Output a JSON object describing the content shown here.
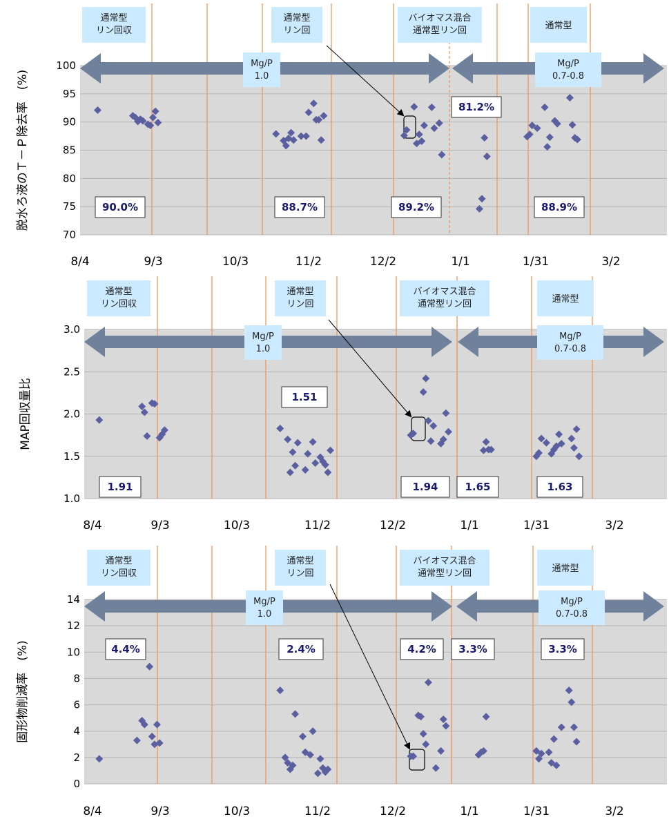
{
  "chart_data": [
    {
      "type": "scatter",
      "ylabel": "脱水ろ液のＴ－Ｐ除去率　(%)",
      "ylim": [
        70,
        100
      ],
      "yticks": [
        "70",
        "75",
        "80",
        "85",
        "90",
        "95",
        "100"
      ],
      "x_date_ticks": [
        "8/4",
        "9/3",
        "10/3",
        "11/2",
        "12/2",
        "1/1",
        "1/31",
        "3/2"
      ],
      "phases": [
        "通常型\nリン回収",
        "通常型\nリン回",
        "バイオマス混合\n通常型リン回",
        "通常型"
      ],
      "mgp": [
        "Mg/P\n1.0",
        "Mg/P\n0.7-0.8"
      ],
      "annotations": [
        "90.0%",
        "88.7%",
        "89.2%",
        "81.2%",
        "88.9%"
      ],
      "points": [
        {
          "x": "8/11",
          "y": 92.1
        },
        {
          "x": "8/25",
          "y": 91.1
        },
        {
          "x": "8/26",
          "y": 90.8
        },
        {
          "x": "8/27",
          "y": 90.1
        },
        {
          "x": "8/28",
          "y": 90.5
        },
        {
          "x": "8/29",
          "y": 90.2
        },
        {
          "x": "8/31",
          "y": 89.6
        },
        {
          "x": "9/1",
          "y": 89.4
        },
        {
          "x": "9/2",
          "y": 90.8
        },
        {
          "x": "9/3",
          "y": 91.9
        },
        {
          "x": "9/4",
          "y": 89.9
        },
        {
          "x": "10/21",
          "y": 87.9
        },
        {
          "x": "10/24",
          "y": 86.7
        },
        {
          "x": "10/25",
          "y": 85.8
        },
        {
          "x": "10/26",
          "y": 87.1
        },
        {
          "x": "10/27",
          "y": 88.1
        },
        {
          "x": "10/28",
          "y": 86.8
        },
        {
          "x": "10/31",
          "y": 87.5
        },
        {
          "x": "11/2",
          "y": 87.5
        },
        {
          "x": "11/3",
          "y": 91.7
        },
        {
          "x": "11/5",
          "y": 93.3
        },
        {
          "x": "11/6",
          "y": 90.4
        },
        {
          "x": "11/7",
          "y": 90.4
        },
        {
          "x": "11/8",
          "y": 86.8
        },
        {
          "x": "11/9",
          "y": 91.1
        },
        {
          "x": "12/11",
          "y": 87.6
        },
        {
          "x": "12/12",
          "y": 88.6
        },
        {
          "x": "12/15",
          "y": 92.7
        },
        {
          "x": "12/16",
          "y": 86.2
        },
        {
          "x": "12/17",
          "y": 87.8
        },
        {
          "x": "12/18",
          "y": 86.6
        },
        {
          "x": "12/19",
          "y": 89.4
        },
        {
          "x": "12/22",
          "y": 92.6
        },
        {
          "x": "12/23",
          "y": 88.9
        },
        {
          "x": "12/25",
          "y": 89.8
        },
        {
          "x": "12/26",
          "y": 84.2
        },
        {
          "x": "1/10",
          "y": 74.6
        },
        {
          "x": "1/11",
          "y": 76.4
        },
        {
          "x": "1/12",
          "y": 87.2
        },
        {
          "x": "1/13",
          "y": 83.9
        },
        {
          "x": "1/29",
          "y": 87.4
        },
        {
          "x": "1/30",
          "y": 87.8
        },
        {
          "x": "1/31",
          "y": 89.4
        },
        {
          "x": "2/2",
          "y": 88.9
        },
        {
          "x": "2/5",
          "y": 92.6
        },
        {
          "x": "2/6",
          "y": 85.6
        },
        {
          "x": "2/7",
          "y": 87.3
        },
        {
          "x": "2/9",
          "y": 90.2
        },
        {
          "x": "2/10",
          "y": 89.7
        },
        {
          "x": "2/15",
          "y": 94.3
        },
        {
          "x": "2/16",
          "y": 89.5
        },
        {
          "x": "2/17",
          "y": 87.2
        },
        {
          "x": "2/18",
          "y": 86.9
        }
      ]
    },
    {
      "type": "scatter",
      "ylabel": "MAP回収量比",
      "ylim": [
        1.0,
        3.0
      ],
      "yticks": [
        "1.0",
        "1.5",
        "2.0",
        "2.5",
        "3.0"
      ],
      "x_date_ticks": [
        "8/4",
        "9/3",
        "10/3",
        "11/2",
        "12/2",
        "1/1",
        "1/31",
        "3/2"
      ],
      "phases": [
        "通常型\nリン回収",
        "通常型\nリン回",
        "バイオマス混合\n通常型リン回",
        "通常型"
      ],
      "mgp": [
        "Mg/P\n1.0",
        "Mg/P\n0.7-0.8"
      ],
      "annotations": [
        "1.91",
        "1.51",
        "1.94",
        "1.65",
        "1.63"
      ],
      "points": [
        {
          "x": "8/10",
          "y": 1.93
        },
        {
          "x": "8/27",
          "y": 2.09
        },
        {
          "x": "8/28",
          "y": 2.02
        },
        {
          "x": "8/29",
          "y": 1.74
        },
        {
          "x": "8/31",
          "y": 2.13
        },
        {
          "x": "9/1",
          "y": 2.12
        },
        {
          "x": "9/3",
          "y": 1.72
        },
        {
          "x": "9/4",
          "y": 1.76
        },
        {
          "x": "9/5",
          "y": 1.81
        },
        {
          "x": "10/21",
          "y": 1.83
        },
        {
          "x": "10/24",
          "y": 1.7
        },
        {
          "x": "10/25",
          "y": 1.31
        },
        {
          "x": "10/26",
          "y": 1.55
        },
        {
          "x": "10/27",
          "y": 1.39
        },
        {
          "x": "10/28",
          "y": 1.66
        },
        {
          "x": "10/31",
          "y": 1.34
        },
        {
          "x": "11/1",
          "y": 1.53
        },
        {
          "x": "11/3",
          "y": 1.67
        },
        {
          "x": "11/4",
          "y": 1.42
        },
        {
          "x": "11/6",
          "y": 1.49
        },
        {
          "x": "11/7",
          "y": 1.44
        },
        {
          "x": "11/8",
          "y": 1.4
        },
        {
          "x": "11/9",
          "y": 1.31
        },
        {
          "x": "11/10",
          "y": 1.57
        },
        {
          "x": "12/12",
          "y": 1.75
        },
        {
          "x": "12/13",
          "y": 1.77
        },
        {
          "x": "12/17",
          "y": 2.26
        },
        {
          "x": "12/18",
          "y": 2.42
        },
        {
          "x": "12/19",
          "y": 1.92
        },
        {
          "x": "12/20",
          "y": 1.68
        },
        {
          "x": "12/21",
          "y": 1.86
        },
        {
          "x": "12/24",
          "y": 1.65
        },
        {
          "x": "12/25",
          "y": 1.7
        },
        {
          "x": "12/26",
          "y": 2.01
        },
        {
          "x": "12/27",
          "y": 1.79
        },
        {
          "x": "1/10",
          "y": 1.57
        },
        {
          "x": "1/11",
          "y": 1.67
        },
        {
          "x": "1/12",
          "y": 1.58
        },
        {
          "x": "1/13",
          "y": 1.58
        },
        {
          "x": "1/31",
          "y": 1.5
        },
        {
          "x": "2/1",
          "y": 1.54
        },
        {
          "x": "2/2",
          "y": 1.71
        },
        {
          "x": "2/4",
          "y": 1.66
        },
        {
          "x": "2/6",
          "y": 1.53
        },
        {
          "x": "2/7",
          "y": 1.58
        },
        {
          "x": "2/8",
          "y": 1.62
        },
        {
          "x": "2/9",
          "y": 1.76
        },
        {
          "x": "2/10",
          "y": 1.65
        },
        {
          "x": "2/14",
          "y": 1.71
        },
        {
          "x": "2/15",
          "y": 1.6
        },
        {
          "x": "2/16",
          "y": 1.82
        },
        {
          "x": "2/17",
          "y": 1.5
        }
      ]
    },
    {
      "type": "scatter",
      "ylabel": "固形物削減率　(%)",
      "ylim": [
        0,
        14
      ],
      "yticks": [
        "0",
        "2",
        "4",
        "6",
        "8",
        "10",
        "12",
        "14"
      ],
      "x_date_ticks": [
        "8/4",
        "9/3",
        "10/3",
        "11/2",
        "12/2",
        "1/1",
        "1/31",
        "3/2"
      ],
      "phases": [
        "通常型\nリン回収",
        "通常型\nリン回",
        "バイオマス混合\n通常型リン回",
        "通常型"
      ],
      "mgp": [
        "Mg/P\n1.0",
        "Mg/P\n0.7-0.8"
      ],
      "annotations": [
        "4.4%",
        "2.4%",
        "4.2%",
        "3.3%",
        "3.3%"
      ],
      "points": [
        {
          "x": "8/10",
          "y": 1.9
        },
        {
          "x": "8/25",
          "y": 3.3
        },
        {
          "x": "8/27",
          "y": 4.8
        },
        {
          "x": "8/28",
          "y": 4.5
        },
        {
          "x": "8/30",
          "y": 8.9
        },
        {
          "x": "8/31",
          "y": 3.6
        },
        {
          "x": "9/1",
          "y": 3.0
        },
        {
          "x": "9/2",
          "y": 4.5
        },
        {
          "x": "9/3",
          "y": 3.1
        },
        {
          "x": "10/21",
          "y": 7.1
        },
        {
          "x": "10/23",
          "y": 2.0
        },
        {
          "x": "10/24",
          "y": 1.6
        },
        {
          "x": "10/25",
          "y": 1.1
        },
        {
          "x": "10/26",
          "y": 1.4
        },
        {
          "x": "10/27",
          "y": 5.3
        },
        {
          "x": "10/30",
          "y": 3.6
        },
        {
          "x": "10/31",
          "y": 2.4
        },
        {
          "x": "11/2",
          "y": 2.2
        },
        {
          "x": "11/3",
          "y": 4.0
        },
        {
          "x": "11/5",
          "y": 0.8
        },
        {
          "x": "11/6",
          "y": 1.9
        },
        {
          "x": "11/7",
          "y": 1.2
        },
        {
          "x": "11/8",
          "y": 0.9
        },
        {
          "x": "11/9",
          "y": 1.1
        },
        {
          "x": "12/12",
          "y": 2.1
        },
        {
          "x": "12/13",
          "y": 2.1
        },
        {
          "x": "12/15",
          "y": 5.2
        },
        {
          "x": "12/16",
          "y": 5.1
        },
        {
          "x": "12/17",
          "y": 3.8
        },
        {
          "x": "12/18",
          "y": 3.0
        },
        {
          "x": "12/19",
          "y": 7.7
        },
        {
          "x": "12/22",
          "y": 1.2
        },
        {
          "x": "12/24",
          "y": 2.5
        },
        {
          "x": "12/25",
          "y": 4.9
        },
        {
          "x": "12/26",
          "y": 4.4
        },
        {
          "x": "1/8",
          "y": 2.2
        },
        {
          "x": "1/9",
          "y": 2.4
        },
        {
          "x": "1/10",
          "y": 2.5
        },
        {
          "x": "1/11",
          "y": 5.1
        },
        {
          "x": "1/31",
          "y": 2.5
        },
        {
          "x": "2/1",
          "y": 1.9
        },
        {
          "x": "2/2",
          "y": 2.3
        },
        {
          "x": "2/5",
          "y": 2.4
        },
        {
          "x": "2/6",
          "y": 1.6
        },
        {
          "x": "2/7",
          "y": 3.4
        },
        {
          "x": "2/8",
          "y": 1.4
        },
        {
          "x": "2/10",
          "y": 4.3
        },
        {
          "x": "2/13",
          "y": 7.1
        },
        {
          "x": "2/14",
          "y": 6.2
        },
        {
          "x": "2/15",
          "y": 4.3
        },
        {
          "x": "2/16",
          "y": 3.2
        }
      ]
    }
  ],
  "colors": {
    "plot_bg": "#d9d9d9",
    "grid": "#b5b5b5",
    "phase_line": "#f0955a",
    "arrow": "#6f819b",
    "label_box": "#cceaff",
    "marker": "#5a5fa0",
    "annotation_text": "#1a1a6e"
  }
}
